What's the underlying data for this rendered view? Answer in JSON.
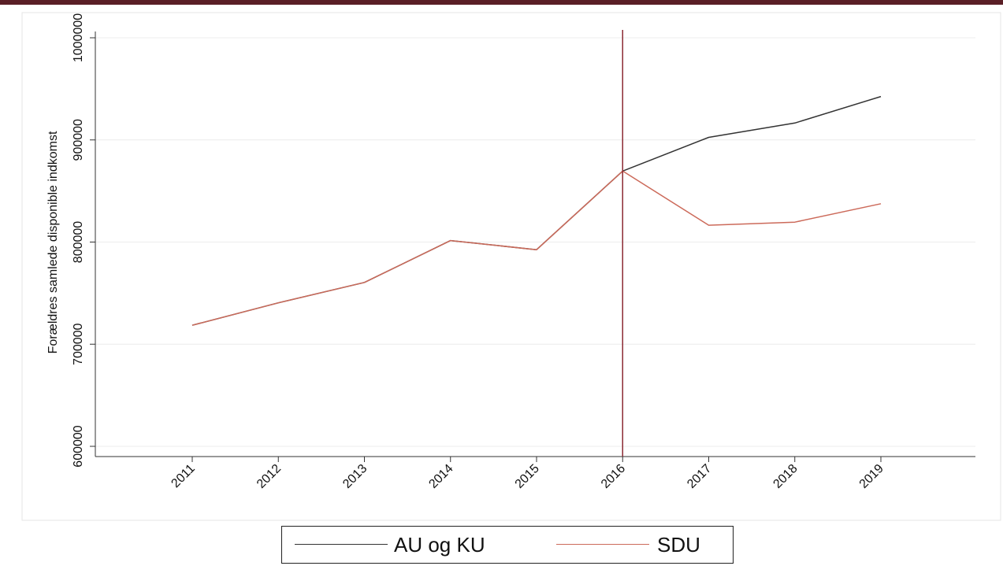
{
  "chart_data": {
    "type": "line",
    "title": "",
    "xlabel": "",
    "ylabel": "Forældres samlede disponible indkomst",
    "x": [
      "2011",
      "2012",
      "2013",
      "2014",
      "2015",
      "2016",
      "2017",
      "2018",
      "2019"
    ],
    "ylim": [
      600000,
      1000000
    ],
    "y_ticks": [
      "600000",
      "700000",
      "800000",
      "900000",
      "1000000"
    ],
    "grid": true,
    "vertical_marker": "2016",
    "legend_position": "bottom",
    "series": [
      {
        "name": "AU og KU",
        "color": "#333333",
        "values": [
          718500,
          740500,
          760500,
          801500,
          792500,
          869500,
          902500,
          916500,
          942500
        ]
      },
      {
        "name": "SDU",
        "color": "#cc6a5a",
        "values": [
          718500,
          740500,
          760500,
          801500,
          792500,
          869500,
          816500,
          819500,
          837500
        ]
      }
    ],
    "marker_color": "#8b2a33"
  }
}
